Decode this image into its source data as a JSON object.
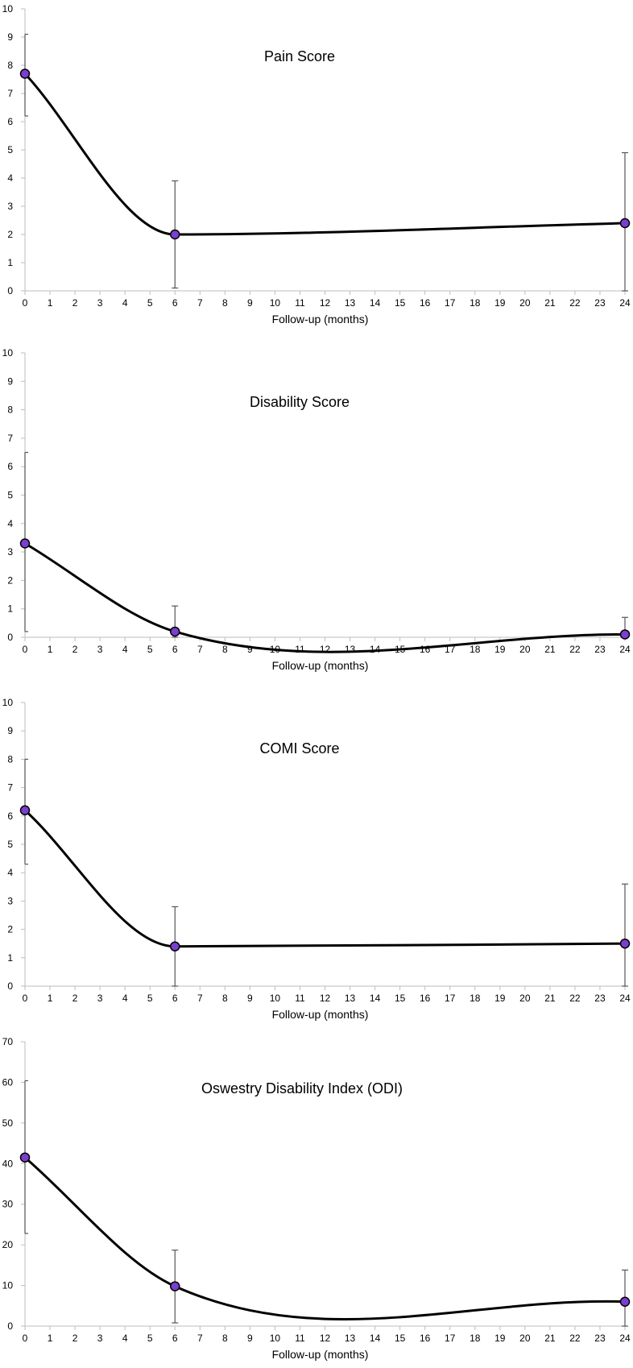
{
  "chart_data": [
    {
      "type": "line",
      "title": "Pain Score",
      "xlabel": "Follow-up (months)",
      "ylabel": "",
      "xlim": [
        0,
        24
      ],
      "ylim": [
        0,
        10
      ],
      "x_ticks": [
        "0",
        "1",
        "2",
        "3",
        "4",
        "5",
        "6",
        "7",
        "8",
        "9",
        "10",
        "11",
        "12",
        "13",
        "14",
        "15",
        "16",
        "17",
        "18",
        "19",
        "20",
        "21",
        "22",
        "23",
        "24"
      ],
      "y_ticks": [
        "0",
        "1",
        "2",
        "3",
        "4",
        "5",
        "6",
        "7",
        "8",
        "9",
        "10"
      ],
      "grid": false,
      "series": [
        {
          "name": "Pain Score",
          "x": [
            0,
            6,
            24
          ],
          "values": [
            7.7,
            2.0,
            2.4
          ],
          "error_upper": [
            9.1,
            3.9,
            4.9
          ],
          "error_lower": [
            6.2,
            0.1,
            0.0
          ]
        }
      ]
    },
    {
      "type": "line",
      "title": "Disability Score",
      "xlabel": "Follow-up (months)",
      "ylabel": "",
      "xlim": [
        0,
        24
      ],
      "ylim": [
        0,
        10
      ],
      "x_ticks": [
        "0",
        "1",
        "2",
        "3",
        "4",
        "5",
        "6",
        "7",
        "8",
        "9",
        "10",
        "11",
        "12",
        "13",
        "14",
        "15",
        "16",
        "17",
        "18",
        "19",
        "20",
        "21",
        "22",
        "23",
        "24"
      ],
      "y_ticks": [
        "0",
        "1",
        "2",
        "3",
        "4",
        "5",
        "6",
        "7",
        "8",
        "9",
        "10"
      ],
      "grid": false,
      "series": [
        {
          "name": "Disability Score",
          "x": [
            0,
            6,
            24
          ],
          "values": [
            3.3,
            0.2,
            0.1
          ],
          "error_upper": [
            6.5,
            1.1,
            0.7
          ],
          "error_lower": [
            0.2,
            0.0,
            0.0
          ]
        }
      ]
    },
    {
      "type": "line",
      "title": "COMI Score",
      "xlabel": "Follow-up (months)",
      "ylabel": "",
      "xlim": [
        0,
        24
      ],
      "ylim": [
        0,
        10
      ],
      "x_ticks": [
        "0",
        "1",
        "2",
        "3",
        "4",
        "5",
        "6",
        "7",
        "8",
        "9",
        "10",
        "11",
        "12",
        "13",
        "14",
        "15",
        "16",
        "17",
        "18",
        "19",
        "20",
        "21",
        "22",
        "23",
        "24"
      ],
      "y_ticks": [
        "0",
        "1",
        "2",
        "3",
        "4",
        "5",
        "6",
        "7",
        "8",
        "9",
        "10"
      ],
      "grid": false,
      "series": [
        {
          "name": "COMI Score",
          "x": [
            0,
            6,
            24
          ],
          "values": [
            6.2,
            1.4,
            1.5
          ],
          "error_upper": [
            8.0,
            2.8,
            3.6
          ],
          "error_lower": [
            4.3,
            0.0,
            0.0
          ]
        }
      ]
    },
    {
      "type": "line",
      "title": "Oswestry Disability Index (ODI)",
      "xlabel": "Follow-up (months)",
      "ylabel": "",
      "xlim": [
        0,
        24
      ],
      "ylim": [
        0,
        70
      ],
      "x_ticks": [
        "0",
        "1",
        "2",
        "3",
        "4",
        "5",
        "6",
        "7",
        "8",
        "9",
        "10",
        "11",
        "12",
        "13",
        "14",
        "15",
        "16",
        "17",
        "18",
        "19",
        "20",
        "21",
        "22",
        "23",
        "24"
      ],
      "y_ticks": [
        "0",
        "10",
        "20",
        "30",
        "40",
        "50",
        "60",
        "70"
      ],
      "grid": false,
      "series": [
        {
          "name": "Oswestry Disability Index (ODI)",
          "x": [
            0,
            6,
            24
          ],
          "values": [
            41.5,
            9.8,
            6.0
          ],
          "error_upper": [
            60.4,
            18.7,
            13.8
          ],
          "error_lower": [
            22.8,
            0.8,
            0.0
          ]
        }
      ]
    }
  ]
}
